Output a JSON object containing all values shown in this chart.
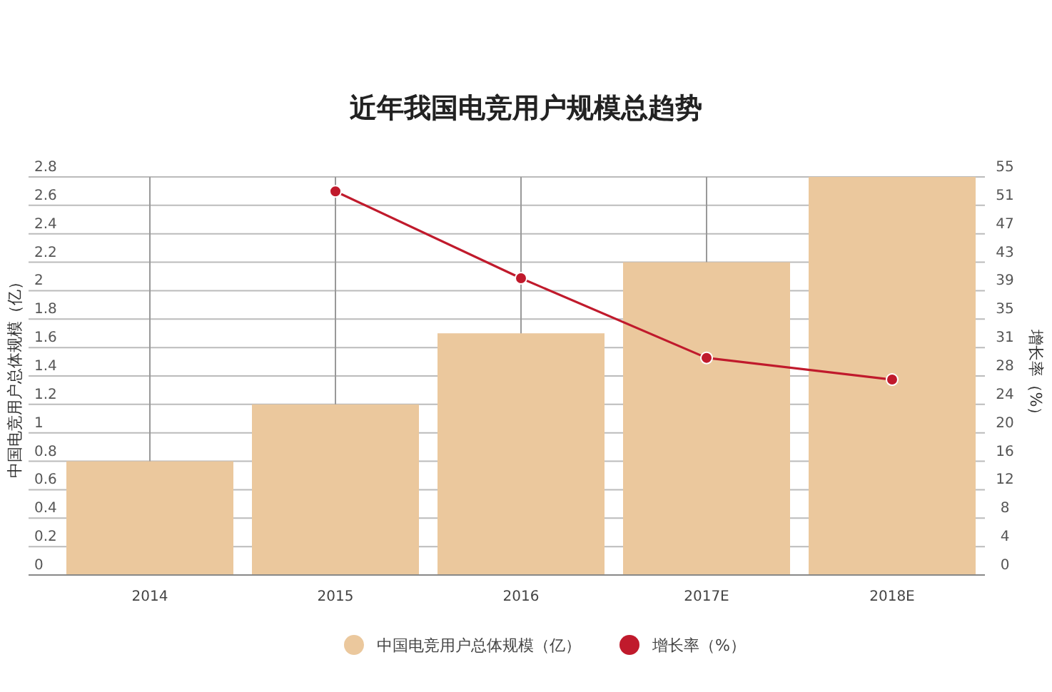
{
  "chart_data": {
    "type": "bar",
    "title": "近年我国电竞用户规模总趋势",
    "categories": [
      "2014",
      "2015",
      "2016",
      "2017E",
      "2018E"
    ],
    "series": [
      {
        "name": "中国电竞用户总体规模（亿）",
        "color": "#ebc89d",
        "values": [
          0.8,
          1.2,
          1.7,
          2.2,
          2.8
        ]
      },
      {
        "name": "增长率（%）",
        "type": "line",
        "axis": "y2",
        "color": "#c01a2c",
        "marker": "circle",
        "values": [
          null,
          53,
          41,
          30,
          27
        ]
      }
    ],
    "ylabel": "中国电竞用户总体规模（亿）",
    "y2label": "增长率（%）",
    "ylim": [
      0,
      2.8
    ],
    "yticks": [
      0,
      0.2,
      0.4,
      0.6,
      0.8,
      1,
      1.2,
      1.4,
      1.6,
      1.8,
      2,
      2.2,
      2.4,
      2.6,
      2.8
    ],
    "y2lim": [
      0,
      55
    ],
    "y2ticks": [
      0,
      {
        "value": 3.93,
        "label": "4"
      },
      {
        "value": 7.86,
        "label": "8"
      },
      {
        "value": 11.79,
        "label": "12"
      },
      {
        "value": 15.71,
        "label": "16"
      },
      {
        "value": 19.64,
        "label": "20"
      },
      {
        "value": 23.57,
        "label": "24"
      },
      {
        "value": 27.5,
        "label": "28"
      },
      {
        "value": 31.43,
        "label": "31"
      },
      {
        "value": 35.36,
        "label": "35"
      },
      {
        "value": 39.29,
        "label": "39"
      },
      {
        "value": 43.21,
        "label": "43"
      },
      {
        "value": 47.14,
        "label": "47"
      },
      {
        "value": 51.07,
        "label": "51"
      },
      55
    ],
    "grid": true,
    "legend": "bottom"
  }
}
